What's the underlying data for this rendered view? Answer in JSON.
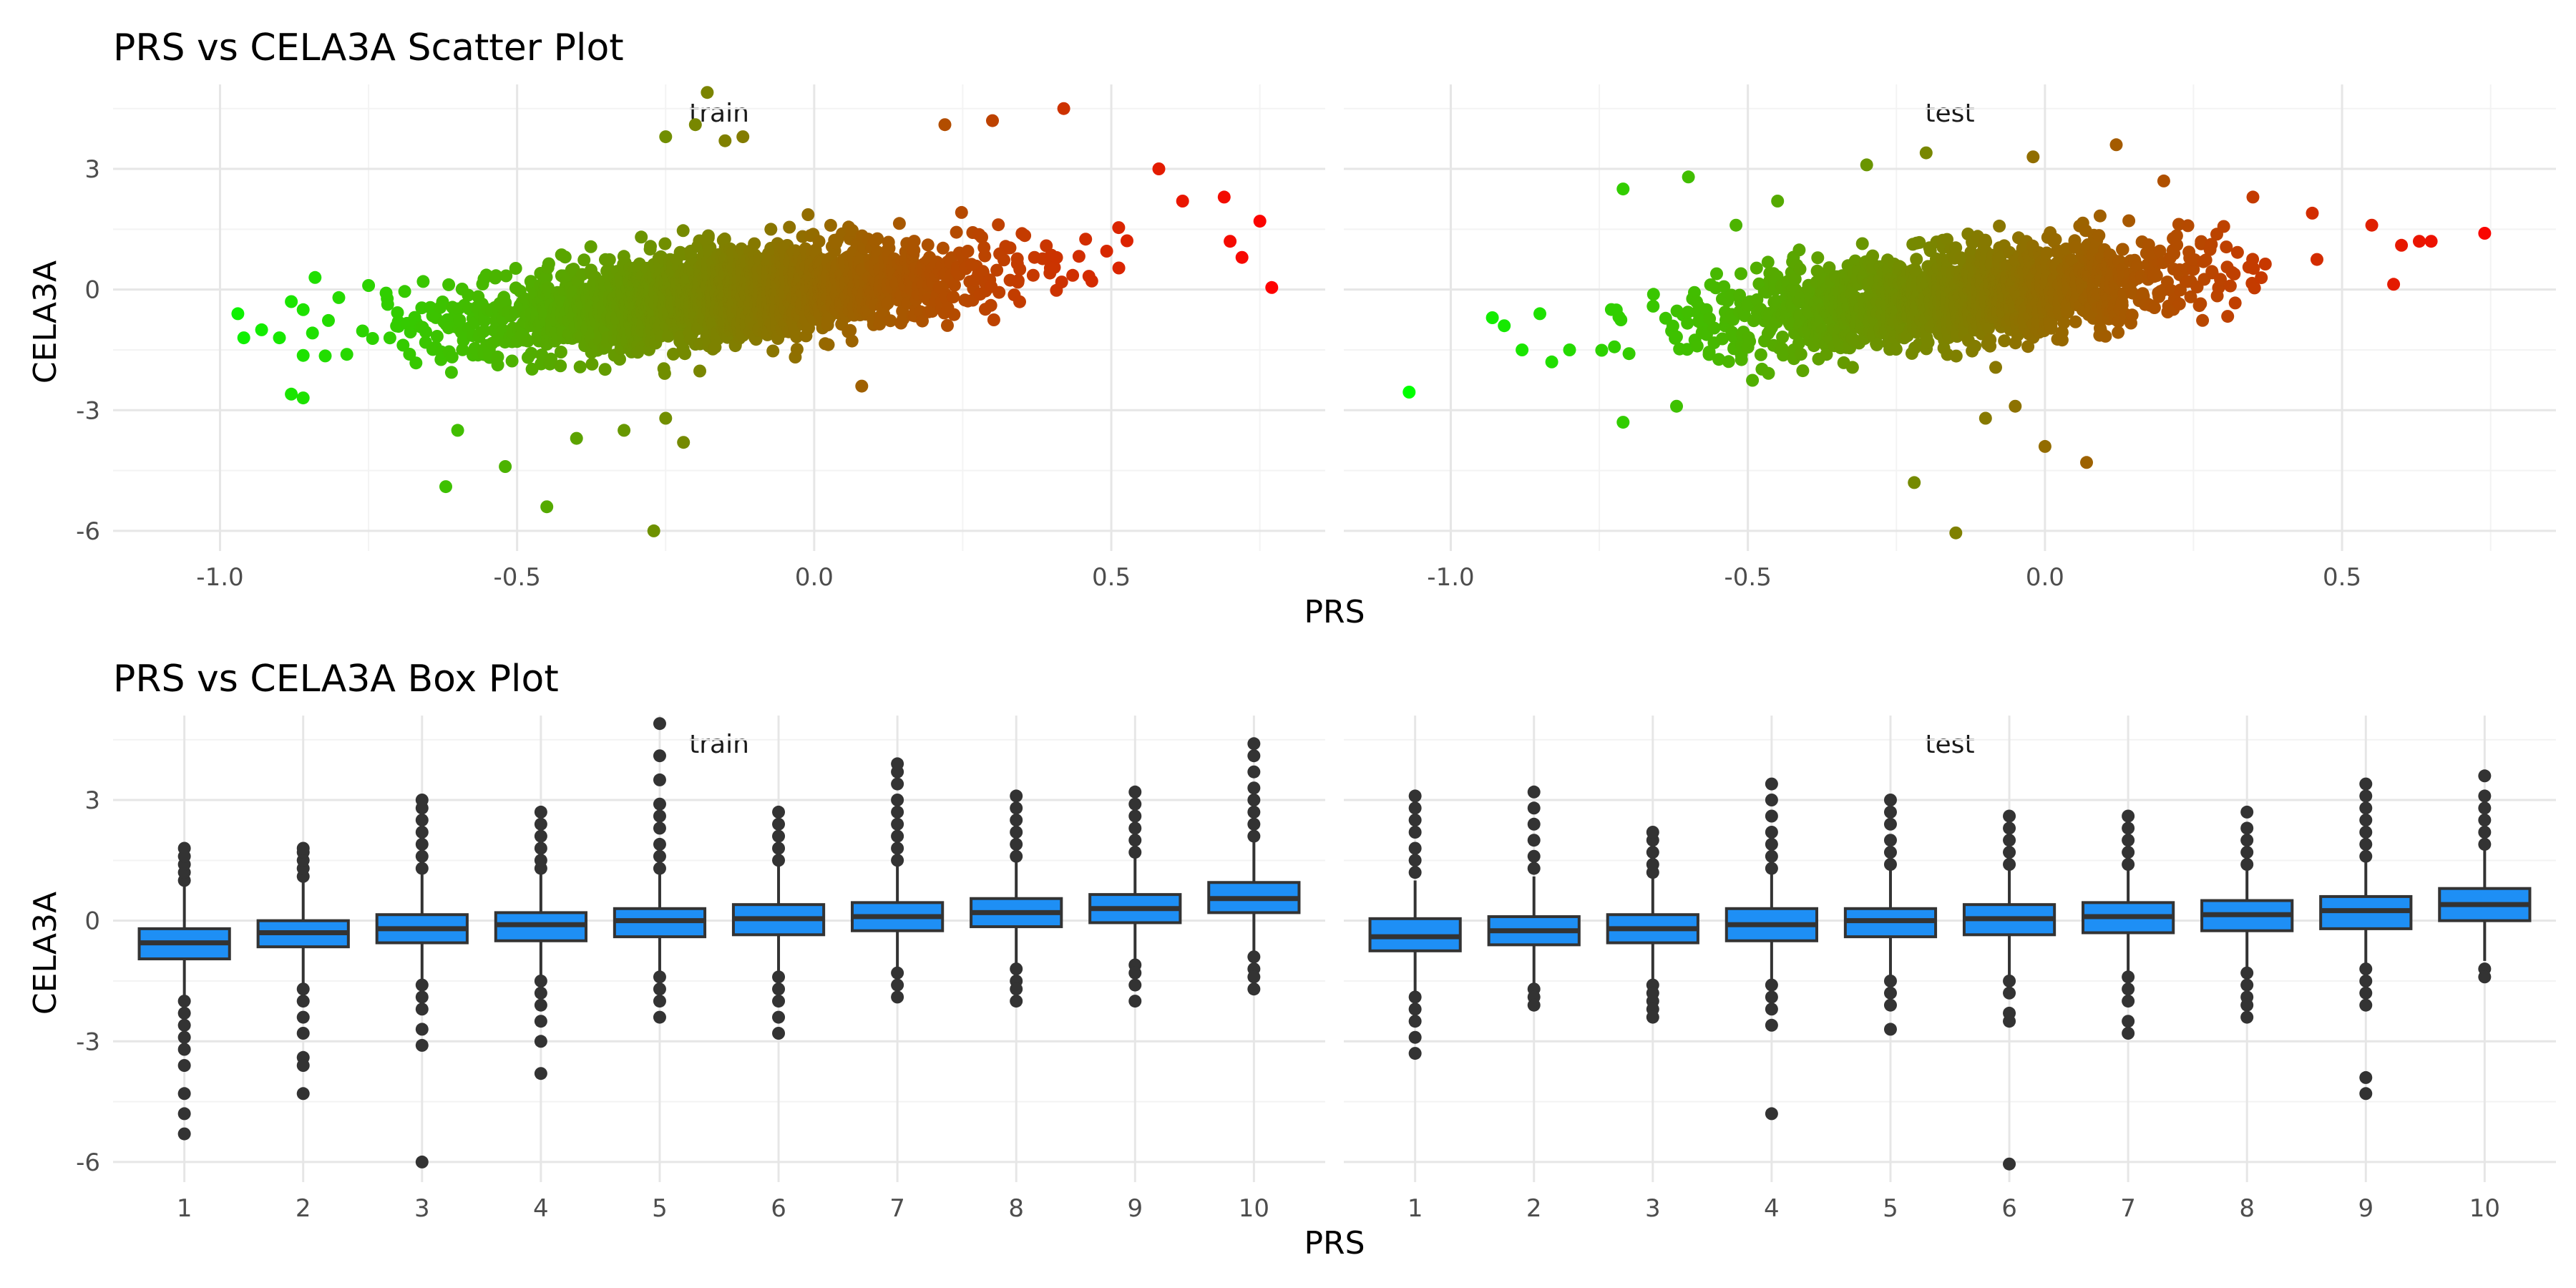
{
  "chart_data": [
    {
      "type": "scatter",
      "title": "PRS vs CELA3A Scatter Plot",
      "xlabel": "PRS",
      "ylabel": "CELA3A",
      "xlim": [
        -1.18,
        0.86
      ],
      "ylim": [
        -6.5,
        5.1
      ],
      "x_ticks": [
        "-1.0",
        "-0.5",
        "0.0",
        "0.5"
      ],
      "y_ticks": [
        "3",
        "0",
        "-3",
        "-6"
      ],
      "x_tick_values": [
        -1.0,
        -0.5,
        0.0,
        0.5
      ],
      "y_tick_values": [
        3,
        0,
        -3,
        -6
      ],
      "grid": true,
      "color_gradient": [
        "#00ff00",
        "#ff0000"
      ],
      "color_domain": [
        -1.07,
        0.78
      ],
      "trend": {
        "slope": 1.4,
        "intercept": 0.05,
        "sd": 0.55
      },
      "panels": [
        {
          "name": "train",
          "x_mean": -0.15,
          "x_sd": 0.21,
          "n": 2600,
          "outliers": [
            [
              -0.97,
              -0.6
            ],
            [
              -0.96,
              -1.2
            ],
            [
              -0.93,
              -1.0
            ],
            [
              -0.9,
              -1.2
            ],
            [
              -0.88,
              -0.3
            ],
            [
              -0.88,
              -2.6
            ],
            [
              -0.86,
              -0.5
            ],
            [
              -0.84,
              0.3
            ],
            [
              -0.8,
              -0.2
            ],
            [
              -0.75,
              0.1
            ],
            [
              -0.7,
              -0.8
            ],
            [
              -0.62,
              -4.9
            ],
            [
              -0.6,
              -3.5
            ],
            [
              -0.52,
              -4.4
            ],
            [
              -0.45,
              -5.4
            ],
            [
              -0.4,
              -3.7
            ],
            [
              -0.32,
              -3.5
            ],
            [
              -0.27,
              -6.0
            ],
            [
              -0.25,
              -3.2
            ],
            [
              -0.22,
              -3.8
            ],
            [
              -0.25,
              3.8
            ],
            [
              -0.2,
              4.1
            ],
            [
              -0.18,
              4.9
            ],
            [
              -0.15,
              3.7
            ],
            [
              -0.12,
              3.8
            ],
            [
              0.08,
              -2.4
            ],
            [
              0.22,
              4.1
            ],
            [
              0.3,
              4.2
            ],
            [
              0.42,
              4.5
            ],
            [
              0.58,
              3.0
            ],
            [
              0.62,
              2.2
            ],
            [
              0.69,
              2.3
            ],
            [
              0.7,
              1.2
            ],
            [
              0.75,
              1.7
            ],
            [
              0.72,
              0.8
            ],
            [
              0.77,
              0.05
            ]
          ]
        },
        {
          "name": "test",
          "x_mean": -0.16,
          "x_sd": 0.2,
          "n": 1700,
          "outliers": [
            [
              -1.07,
              -2.55
            ],
            [
              -0.93,
              -0.7
            ],
            [
              -0.91,
              -0.9
            ],
            [
              -0.88,
              -1.5
            ],
            [
              -0.85,
              -0.6
            ],
            [
              -0.83,
              -1.8
            ],
            [
              -0.8,
              -1.5
            ],
            [
              -0.71,
              2.5
            ],
            [
              -0.71,
              -3.3
            ],
            [
              -0.62,
              -2.9
            ],
            [
              -0.6,
              2.8
            ],
            [
              -0.52,
              1.6
            ],
            [
              -0.45,
              2.2
            ],
            [
              -0.3,
              3.1
            ],
            [
              -0.22,
              -4.8
            ],
            [
              -0.2,
              3.4
            ],
            [
              -0.15,
              -6.05
            ],
            [
              -0.1,
              -3.2
            ],
            [
              -0.05,
              -2.9
            ],
            [
              0.0,
              -3.9
            ],
            [
              -0.02,
              3.3
            ],
            [
              0.07,
              -4.3
            ],
            [
              0.12,
              3.6
            ],
            [
              0.2,
              2.7
            ],
            [
              0.35,
              2.3
            ],
            [
              0.45,
              1.9
            ],
            [
              0.55,
              1.6
            ],
            [
              0.6,
              1.1
            ],
            [
              0.63,
              1.2
            ],
            [
              0.65,
              1.2
            ],
            [
              0.74,
              1.4
            ]
          ]
        }
      ]
    },
    {
      "type": "box",
      "title": "PRS vs CELA3A Box Plot",
      "xlabel": "PRS",
      "ylabel": "CELA3A",
      "ylim": [
        -6.5,
        5.1
      ],
      "categories": [
        "1",
        "2",
        "3",
        "4",
        "5",
        "6",
        "7",
        "8",
        "9",
        "10"
      ],
      "y_ticks": [
        "3",
        "0",
        "-3",
        "-6"
      ],
      "y_tick_values": [
        3,
        0,
        -3,
        -6
      ],
      "grid": true,
      "box_fill": "#1e8ff5",
      "panels": [
        {
          "name": "train",
          "boxes": [
            {
              "q1": -0.95,
              "med": -0.55,
              "q3": -0.2,
              "low": -1.9,
              "high": 0.9,
              "outliers": [
                1.0,
                1.2,
                1.4,
                1.6,
                1.8,
                -2.0,
                -2.3,
                -2.6,
                -2.9,
                -3.2,
                -3.6,
                -4.3,
                -4.8,
                -5.3
              ]
            },
            {
              "q1": -0.65,
              "med": -0.3,
              "q3": 0.0,
              "low": -1.6,
              "high": 1.0,
              "outliers": [
                1.1,
                1.3,
                1.5,
                1.7,
                1.8,
                -1.7,
                -2.0,
                -2.4,
                -2.8,
                -3.4,
                -3.6,
                -4.3
              ]
            },
            {
              "q1": -0.55,
              "med": -0.2,
              "q3": 0.15,
              "low": -1.5,
              "high": 1.2,
              "outliers": [
                1.3,
                1.6,
                1.9,
                2.2,
                2.5,
                2.8,
                3.0,
                -1.6,
                -1.9,
                -2.2,
                -2.7,
                -3.1,
                -6.0
              ]
            },
            {
              "q1": -0.5,
              "med": -0.1,
              "q3": 0.2,
              "low": -1.4,
              "high": 1.2,
              "outliers": [
                1.3,
                1.5,
                1.8,
                2.1,
                2.4,
                2.7,
                -1.5,
                -1.8,
                -2.1,
                -2.5,
                -3.0,
                -3.8
              ]
            },
            {
              "q1": -0.4,
              "med": 0.0,
              "q3": 0.3,
              "low": -1.3,
              "high": 1.2,
              "outliers": [
                1.3,
                1.6,
                1.9,
                2.3,
                2.6,
                2.9,
                3.5,
                4.1,
                4.9,
                -1.4,
                -1.7,
                -2.0,
                -2.4
              ]
            },
            {
              "q1": -0.35,
              "med": 0.05,
              "q3": 0.4,
              "low": -1.3,
              "high": 1.4,
              "outliers": [
                1.5,
                1.8,
                2.1,
                2.4,
                2.7,
                -1.4,
                -1.7,
                -2.0,
                -2.4,
                -2.8
              ]
            },
            {
              "q1": -0.25,
              "med": 0.1,
              "q3": 0.45,
              "low": -1.2,
              "high": 1.4,
              "outliers": [
                1.5,
                1.8,
                2.1,
                2.4,
                2.7,
                3.0,
                3.4,
                3.7,
                3.9,
                -1.3,
                -1.6,
                -1.9
              ]
            },
            {
              "q1": -0.15,
              "med": 0.2,
              "q3": 0.55,
              "low": -1.1,
              "high": 1.5,
              "outliers": [
                1.6,
                1.9,
                2.2,
                2.5,
                2.8,
                3.1,
                -1.2,
                -1.5,
                -1.7,
                -2.0
              ]
            },
            {
              "q1": -0.05,
              "med": 0.3,
              "q3": 0.65,
              "low": -1.0,
              "high": 1.6,
              "outliers": [
                1.7,
                2.0,
                2.3,
                2.6,
                2.9,
                3.2,
                -1.1,
                -1.3,
                -1.6,
                -2.0
              ]
            },
            {
              "q1": 0.2,
              "med": 0.55,
              "q3": 0.95,
              "low": -0.8,
              "high": 2.0,
              "outliers": [
                2.1,
                2.4,
                2.7,
                3.0,
                3.3,
                3.7,
                4.1,
                4.4,
                -0.9,
                -1.2,
                -1.4,
                -1.7
              ]
            }
          ]
        },
        {
          "name": "test",
          "boxes": [
            {
              "q1": -0.75,
              "med": -0.4,
              "q3": 0.05,
              "low": -1.8,
              "high": 1.0,
              "outliers": [
                1.2,
                1.5,
                1.8,
                2.2,
                2.5,
                2.8,
                3.1,
                -1.9,
                -2.2,
                -2.5,
                -2.9,
                -3.3
              ]
            },
            {
              "q1": -0.6,
              "med": -0.25,
              "q3": 0.1,
              "low": -1.6,
              "high": 1.1,
              "outliers": [
                1.3,
                1.6,
                2.0,
                2.4,
                2.8,
                3.2,
                -1.7,
                -1.9,
                -2.1
              ]
            },
            {
              "q1": -0.55,
              "med": -0.2,
              "q3": 0.15,
              "low": -1.5,
              "high": 1.1,
              "outliers": [
                1.2,
                1.4,
                1.7,
                2.0,
                2.2,
                -1.6,
                -1.8,
                -2.0,
                -2.2,
                -2.4
              ]
            },
            {
              "q1": -0.5,
              "med": -0.1,
              "q3": 0.3,
              "low": -1.5,
              "high": 1.2,
              "outliers": [
                1.3,
                1.6,
                1.9,
                2.2,
                2.6,
                3.0,
                3.4,
                -1.6,
                -1.9,
                -2.2,
                -2.6,
                -4.8
              ]
            },
            {
              "q1": -0.4,
              "med": 0.0,
              "q3": 0.3,
              "low": -1.4,
              "high": 1.3,
              "outliers": [
                1.4,
                1.7,
                2.0,
                2.4,
                2.7,
                3.0,
                -1.5,
                -1.8,
                -2.1,
                -2.7
              ]
            },
            {
              "q1": -0.35,
              "med": 0.05,
              "q3": 0.4,
              "low": -1.4,
              "high": 1.3,
              "outliers": [
                1.4,
                1.7,
                2.0,
                2.3,
                2.6,
                -1.5,
                -1.8,
                -2.3,
                -2.5,
                -6.05
              ]
            },
            {
              "q1": -0.3,
              "med": 0.1,
              "q3": 0.45,
              "low": -1.3,
              "high": 1.3,
              "outliers": [
                1.4,
                1.7,
                2.0,
                2.3,
                2.6,
                -1.4,
                -1.7,
                -2.0,
                -2.5,
                -2.8
              ]
            },
            {
              "q1": -0.25,
              "med": 0.15,
              "q3": 0.5,
              "low": -1.2,
              "high": 1.3,
              "outliers": [
                1.4,
                1.7,
                2.0,
                2.3,
                2.7,
                -1.3,
                -1.6,
                -1.9,
                -2.1,
                -2.4
              ]
            },
            {
              "q1": -0.2,
              "med": 0.25,
              "q3": 0.6,
              "low": -1.1,
              "high": 1.5,
              "outliers": [
                1.6,
                1.9,
                2.2,
                2.5,
                2.8,
                3.1,
                3.4,
                -1.2,
                -1.5,
                -1.8,
                -2.1,
                -3.9,
                -4.3
              ]
            },
            {
              "q1": 0.0,
              "med": 0.4,
              "q3": 0.8,
              "low": -1.0,
              "high": 1.8,
              "outliers": [
                1.9,
                2.2,
                2.5,
                2.8,
                3.1,
                3.6,
                -1.2,
                -1.4
              ]
            }
          ]
        }
      ]
    }
  ]
}
